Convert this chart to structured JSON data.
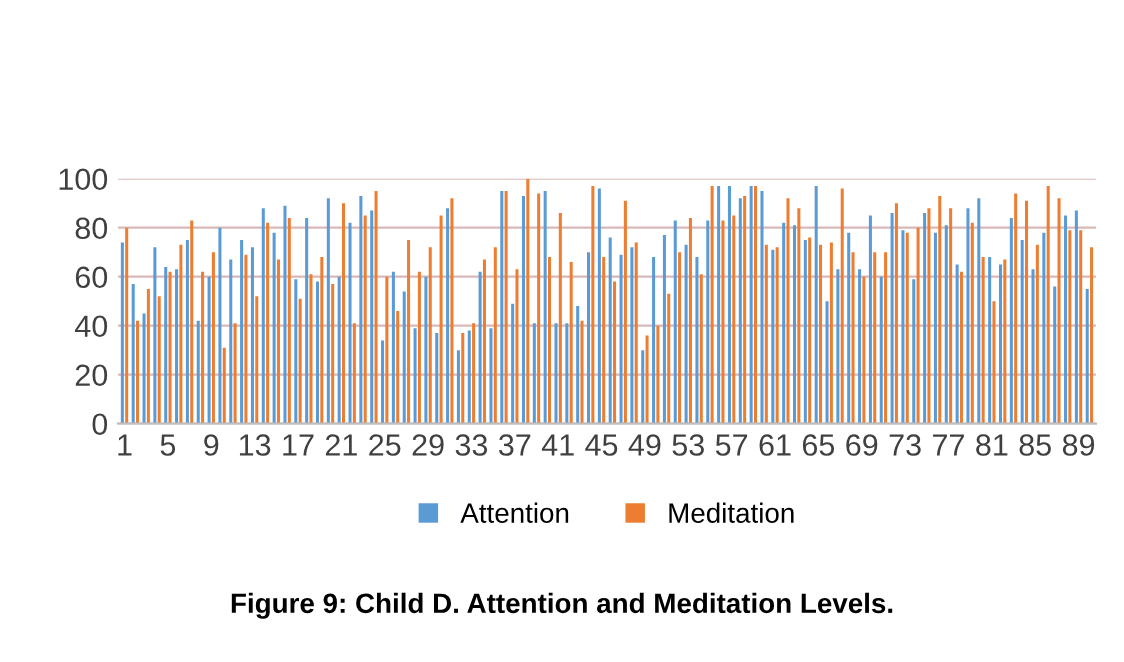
{
  "chart_data": {
    "type": "bar",
    "categories": [
      "1",
      null,
      null,
      null,
      "5",
      null,
      null,
      null,
      "9",
      null,
      null,
      null,
      "13",
      null,
      null,
      null,
      "17",
      null,
      null,
      null,
      "21",
      null,
      null,
      null,
      "25",
      null,
      null,
      null,
      "29",
      null,
      null,
      null,
      "33",
      null,
      null,
      null,
      "37",
      null,
      null,
      null,
      "41",
      null,
      null,
      null,
      "45",
      null,
      null,
      null,
      "49",
      null,
      null,
      null,
      "53",
      null,
      null,
      null,
      "57",
      null,
      null,
      null,
      "61",
      null,
      null,
      null,
      "65",
      null,
      null,
      null,
      "69",
      null,
      null,
      null,
      "73",
      null,
      null,
      null,
      "77",
      null,
      null,
      null,
      "81",
      null,
      null,
      null,
      "85",
      null,
      null,
      null,
      "89",
      null
    ],
    "series": [
      {
        "name": "Attention",
        "color": "#5b9bd5",
        "values": [
          74,
          57,
          45,
          72,
          64,
          63,
          75,
          42,
          60,
          80,
          67,
          75,
          72,
          88,
          78,
          89,
          59,
          84,
          58,
          92,
          60,
          82,
          93,
          87,
          34,
          62,
          54,
          39,
          60,
          37,
          88,
          30,
          38,
          62,
          39,
          95,
          49,
          93,
          41,
          95,
          41,
          41,
          48,
          70,
          96,
          76,
          69,
          72,
          30,
          68,
          77,
          83,
          73,
          68,
          83,
          97,
          97,
          92,
          97,
          95,
          71,
          82,
          81,
          75,
          97,
          50,
          63,
          78,
          63,
          85,
          60,
          86,
          79,
          59,
          86,
          78,
          81,
          65,
          88,
          92,
          68,
          65,
          84,
          75,
          63,
          78,
          56,
          85,
          87,
          55
        ]
      },
      {
        "name": "Meditation",
        "color": "#ed7d31",
        "values": [
          80,
          42,
          55,
          52,
          62,
          73,
          83,
          62,
          70,
          31,
          41,
          69,
          52,
          82,
          67,
          84,
          51,
          61,
          68,
          57,
          90,
          41,
          85,
          95,
          60,
          46,
          75,
          62,
          72,
          85,
          92,
          37,
          41,
          67,
          72,
          95,
          63,
          100,
          94,
          68,
          86,
          66,
          42,
          97,
          68,
          58,
          91,
          74,
          36,
          40,
          53,
          70,
          84,
          61,
          97,
          83,
          85,
          93,
          97,
          73,
          72,
          92,
          88,
          76,
          73,
          74,
          96,
          70,
          60,
          70,
          70,
          90,
          78,
          80,
          88,
          93,
          88,
          62,
          82,
          68,
          50,
          67,
          94,
          91,
          73,
          97,
          92,
          79,
          79,
          72
        ]
      }
    ],
    "ylim": [
      0,
      100
    ],
    "yticks": [
      0,
      20,
      40,
      60,
      80,
      100
    ],
    "grid": "y",
    "legend": "bottom",
    "annotations": [
      "Figure 9: Child D. Attention and Meditation Levels."
    ]
  }
}
